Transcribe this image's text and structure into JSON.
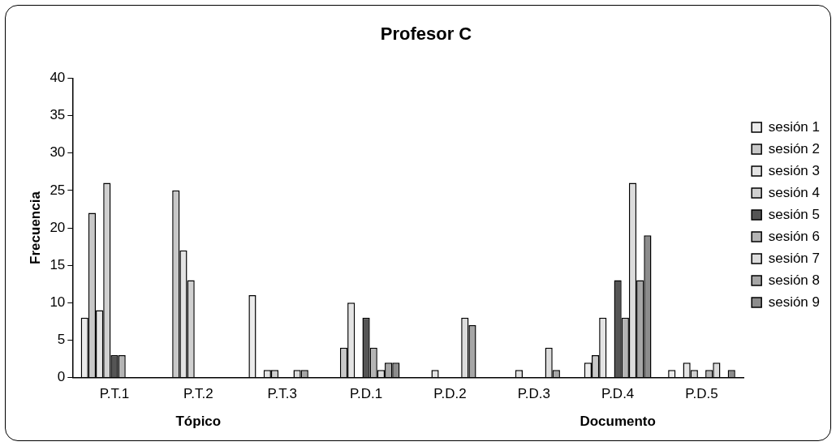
{
  "chart_data": {
    "type": "bar",
    "title": "Profesor C",
    "ylabel": "Frecuencia",
    "categories": [
      "P.T.1",
      "P.T.2",
      "P.T.3",
      "P.D.1",
      "P.D.2",
      "P.D.3",
      "P.D.4",
      "P.D.5"
    ],
    "series": [
      {
        "name": "sesión 1",
        "color": "#ebebeb",
        "values": [
          8,
          0,
          11,
          0,
          0,
          0,
          2,
          1
        ]
      },
      {
        "name": "sesión 2",
        "color": "#c8c8c8",
        "values": [
          22,
          25,
          0,
          4,
          0,
          0,
          3,
          0
        ]
      },
      {
        "name": "sesión 3",
        "color": "#e4e4e4",
        "values": [
          9,
          17,
          1,
          10,
          1,
          1,
          8,
          2
        ]
      },
      {
        "name": "sesión 4",
        "color": "#d0d0d0",
        "values": [
          26,
          13,
          1,
          0,
          0,
          0,
          0,
          1
        ]
      },
      {
        "name": "sesión 5",
        "color": "#555555",
        "values": [
          3,
          0,
          0,
          8,
          0,
          0,
          13,
          0
        ]
      },
      {
        "name": "sesión 6",
        "color": "#b4b4b4",
        "values": [
          3,
          0,
          0,
          4,
          0,
          0,
          8,
          1
        ]
      },
      {
        "name": "sesión 7",
        "color": "#dcdcdc",
        "values": [
          0,
          0,
          1,
          1,
          8,
          4,
          26,
          2
        ]
      },
      {
        "name": "sesión 8",
        "color": "#a6a6a6",
        "values": [
          0,
          0,
          1,
          2,
          7,
          1,
          13,
          0
        ]
      },
      {
        "name": "sesión 9",
        "color": "#8c8c8c",
        "values": [
          0,
          0,
          0,
          2,
          0,
          0,
          19,
          1
        ]
      }
    ],
    "ylim": [
      0,
      40
    ],
    "yticks": [
      0,
      5,
      10,
      15,
      20,
      25,
      30,
      35,
      40
    ],
    "grid": false,
    "legend": "right",
    "annotations": [
      "Tópico",
      "Documento"
    ]
  }
}
